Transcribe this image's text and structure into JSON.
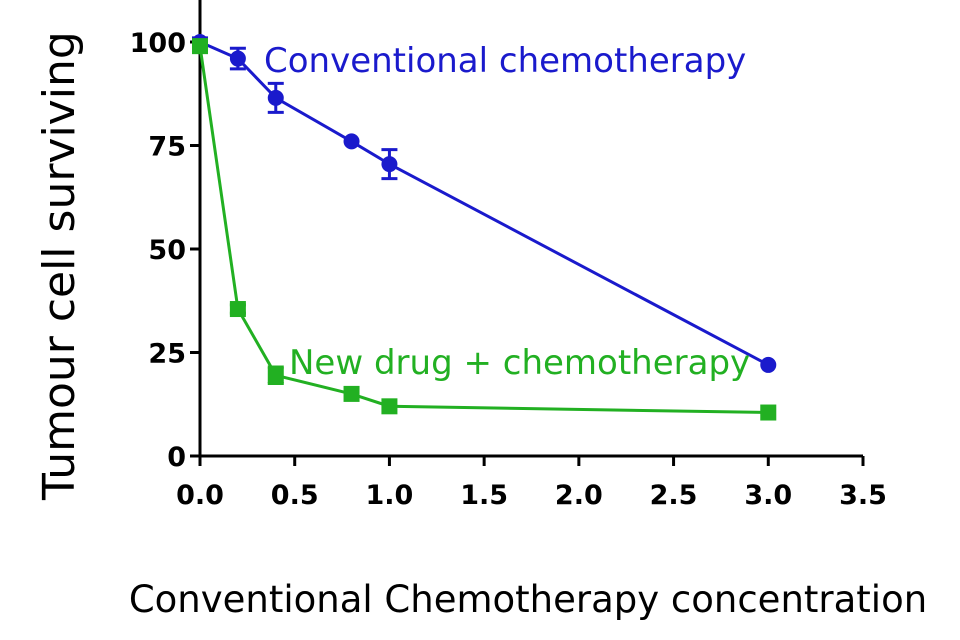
{
  "chart_data": {
    "type": "line",
    "title": "",
    "ylabel": "Tumour cell surviving",
    "xlabel": "Conventional Chemotherapy concentration",
    "xlim": [
      0,
      3.5
    ],
    "ylim": [
      0,
      100
    ],
    "xticks": [
      "0.0",
      "0.5",
      "1.0",
      "1.5",
      "2.0",
      "2.5",
      "3.0",
      "3.5"
    ],
    "yticks": [
      "0",
      "25",
      "50",
      "75",
      "100"
    ],
    "grid": false,
    "series": [
      {
        "name": "Conventional chemotherapy",
        "color": "#1a1acc",
        "marker": "circle",
        "points": [
          {
            "x": 0.0,
            "y": 100,
            "err": 1
          },
          {
            "x": 0.2,
            "y": 96,
            "err": 2.5
          },
          {
            "x": 0.4,
            "y": 86.5,
            "err": 3.5
          },
          {
            "x": 0.8,
            "y": 76,
            "err": 0
          },
          {
            "x": 1.0,
            "y": 70.5,
            "err": 3.5
          },
          {
            "x": 3.0,
            "y": 22,
            "err": 0
          }
        ]
      },
      {
        "name": "New drug + chemotherapy",
        "color": "#22b022",
        "marker": "square",
        "points": [
          {
            "x": 0.0,
            "y": 99,
            "err": 1.5
          },
          {
            "x": 0.2,
            "y": 35.5,
            "err": 1
          },
          {
            "x": 0.4,
            "y": 19.5,
            "err": 2
          },
          {
            "x": 0.8,
            "y": 15,
            "err": 0
          },
          {
            "x": 1.0,
            "y": 12,
            "err": 0
          },
          {
            "x": 3.0,
            "y": 10.5,
            "err": 0
          }
        ]
      }
    ]
  }
}
